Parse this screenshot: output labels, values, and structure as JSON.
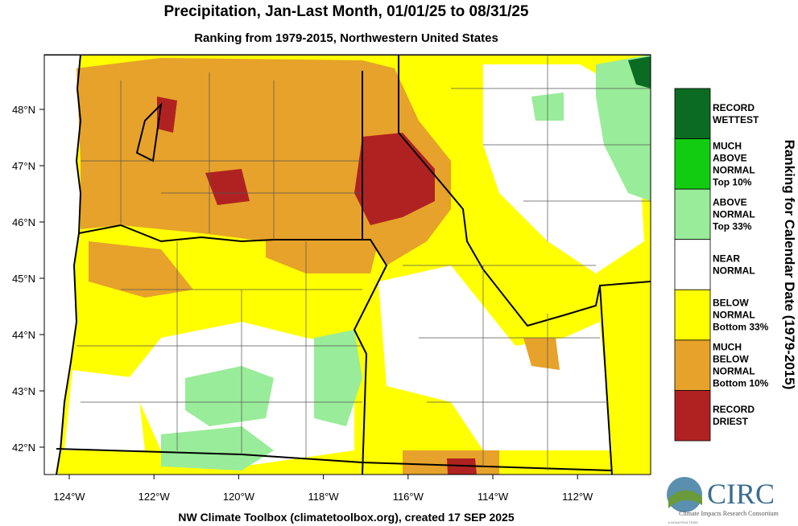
{
  "header": {
    "title": "Precipitation, Jan-Last Month, 01/01/25 to 08/31/25",
    "subtitle": "Ranking from 1979-2015, Northwestern United States"
  },
  "map": {
    "lat_labels": [
      "48°N",
      "47°N",
      "46°N",
      "45°N",
      "44°N",
      "43°N",
      "42°N"
    ],
    "lon_labels": [
      "124°W",
      "122°W",
      "120°W",
      "118°W",
      "116°W",
      "114°W",
      "112°W"
    ]
  },
  "legend": {
    "title": "Ranking for Calendar Date (1979-2015)",
    "items": [
      {
        "color": "#0b6b22",
        "lines": [
          "RECORD",
          "WETTEST"
        ]
      },
      {
        "color": "#11cc11",
        "lines": [
          "MUCH",
          "ABOVE",
          "NORMAL",
          "Top 10%"
        ]
      },
      {
        "color": "#99ec99",
        "lines": [
          "ABOVE",
          "NORMAL",
          "Top 33%"
        ]
      },
      {
        "color": "#ffffff",
        "lines": [
          "NEAR",
          "NORMAL"
        ]
      },
      {
        "color": "#ffff00",
        "lines": [
          "BELOW",
          "NORMAL",
          "Bottom 33%"
        ]
      },
      {
        "color": "#e6a22a",
        "lines": [
          "MUCH",
          "BELOW",
          "NORMAL",
          "Bottom 10%"
        ]
      },
      {
        "color": "#b02222",
        "lines": [
          "RECORD",
          "DRIEST"
        ]
      }
    ]
  },
  "footer": "NW Climate Toolbox (climatetoolbox.org), created 17 SEP 2025",
  "logo": {
    "name": "CIRC",
    "subtitle": "Climate Impacts Research Consortium",
    "tagline": "A NOAA RISA TEAM"
  }
}
